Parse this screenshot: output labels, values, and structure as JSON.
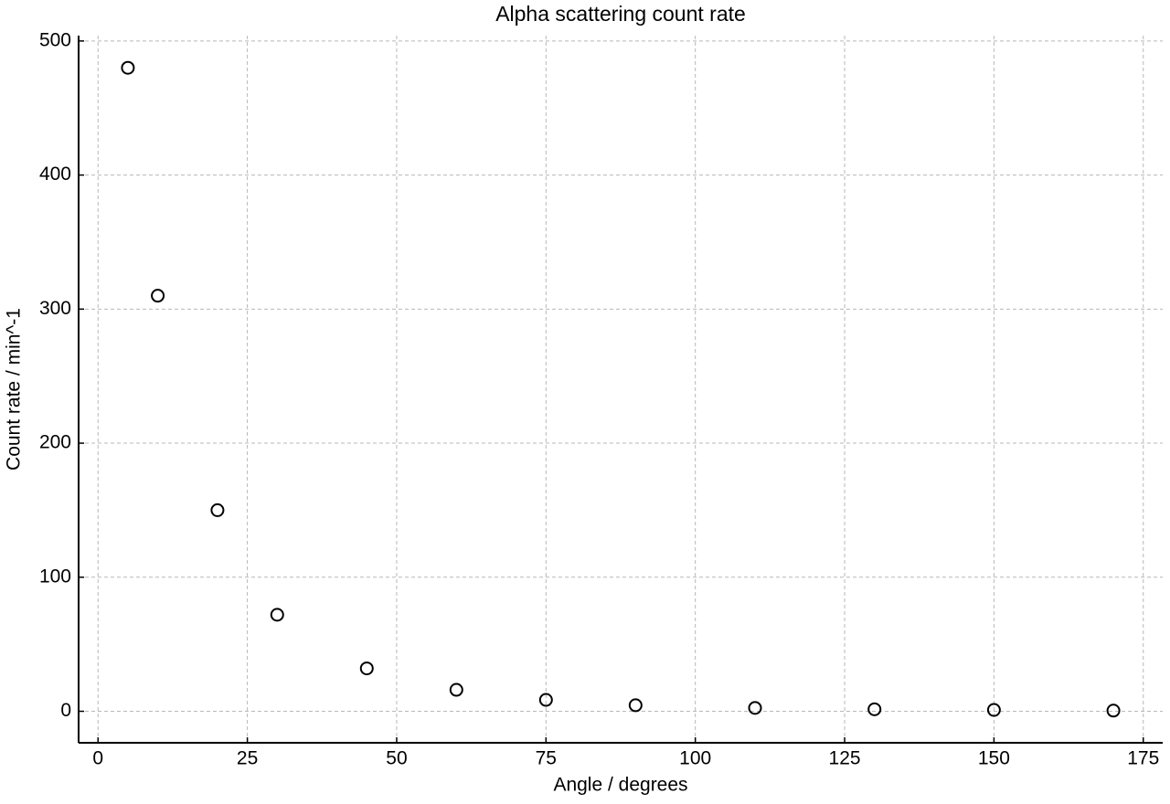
{
  "chart_data": {
    "type": "scatter",
    "title": "Alpha scattering count rate",
    "x_label": "Angle / degrees",
    "y_label": "Count rate / min^-1",
    "x": [
      5,
      10,
      20,
      30,
      45,
      60,
      75,
      90,
      110,
      130,
      150,
      170
    ],
    "series": [
      {
        "color": "#000000",
        "values": [
          480,
          310,
          150,
          72,
          32,
          16,
          8.5,
          4.5,
          2.5,
          1.5,
          1,
          0.5
        ]
      }
    ],
    "xlim": [
      -3.25,
      178.25
    ],
    "ylim": [
      -23.5,
      504
    ],
    "xticks": [
      0,
      25,
      50,
      75,
      100,
      125,
      150,
      175
    ],
    "yticks": [
      0,
      100,
      200,
      300,
      400,
      500
    ],
    "grid": true
  }
}
